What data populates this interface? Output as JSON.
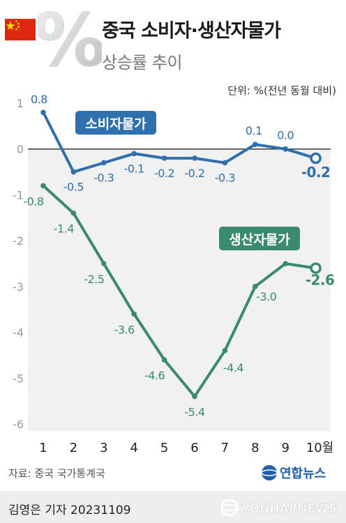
{
  "header": {
    "title": "중국 소비자·생산자물가",
    "subtitle": "상승률 추이",
    "unit": "단위: %(전년 동월 대비)",
    "percent_glyph": "%"
  },
  "footer": {
    "source": "자료: 중국 국가통계국",
    "brand": "연합뉴스",
    "author": "김영은 기자  20231109",
    "watermark": "YONHAPNEWS"
  },
  "colors": {
    "cpi": "#2f6fad",
    "ppi": "#3a8a6e",
    "flag_red": "#de2910",
    "flag_star": "#ffde00"
  },
  "chart_data": {
    "type": "line",
    "title": "중국 소비자·생산자물가 상승률 추이",
    "x": [
      "1",
      "2",
      "3",
      "4",
      "5",
      "6",
      "7",
      "8",
      "9",
      "10월"
    ],
    "ylim": [
      -6,
      1
    ],
    "yticks": [
      1,
      0,
      -1,
      -2,
      -3,
      -4,
      -5,
      -6
    ],
    "grid": false,
    "series": [
      {
        "name": "소비자물가",
        "color": "#2f6fad",
        "values": [
          0.8,
          -0.5,
          -0.3,
          -0.1,
          -0.2,
          -0.2,
          -0.3,
          0.1,
          0.0,
          -0.2
        ],
        "labels": [
          "0.8",
          "-0.5",
          "-0.3",
          "-0.1",
          "-0.2",
          "-0.2",
          "-0.3",
          "0.1",
          "0.0",
          "-0.2"
        ]
      },
      {
        "name": "생산자물가",
        "color": "#3a8a6e",
        "values": [
          -0.8,
          -1.4,
          -2.5,
          -3.6,
          -4.6,
          -5.4,
          -4.4,
          -3.0,
          -2.5,
          -2.6
        ],
        "labels": [
          "-0.8",
          "-1.4",
          "-2.5",
          "-3.6",
          "-4.6",
          "-5.4",
          "-4.4",
          "-3.0",
          "-2.5",
          "-2.6"
        ]
      }
    ]
  }
}
